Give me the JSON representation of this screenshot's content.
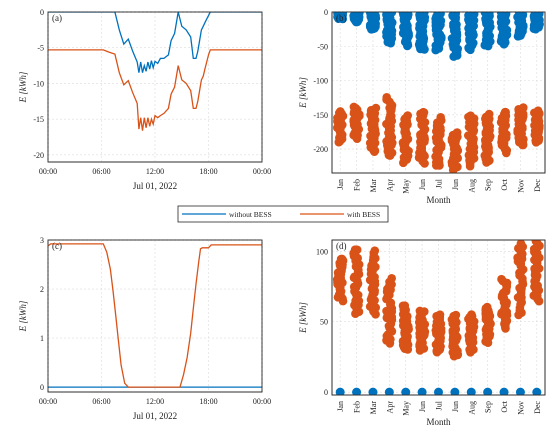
{
  "colors": {
    "without_bess": "#0072BD",
    "with_bess": "#D95319"
  },
  "legend": {
    "without": "without BESS",
    "with": "with BESS"
  },
  "chart_data": [
    {
      "panel": "(a)",
      "type": "line",
      "xlabel": "Jul 01, 2022",
      "ylabel": "E  [kWh]",
      "xticks": [
        "00:00",
        "06:00",
        "12:00",
        "18:00",
        "00:00"
      ],
      "xlim": [
        0,
        24
      ],
      "yticks": [
        "0",
        "-5",
        "-10",
        "-15",
        "-20"
      ],
      "ylim": [
        -21,
        0
      ],
      "series": [
        {
          "name": "without BESS",
          "color_key": "without_bess",
          "x": [
            0,
            7.5,
            8.0,
            8.5,
            9.0,
            9.5,
            10.0,
            10.2,
            10.4,
            10.6,
            10.8,
            11.0,
            11.2,
            11.4,
            11.6,
            11.8,
            12.0,
            12.3,
            12.6,
            13.0,
            13.5,
            13.8,
            14.2,
            14.6,
            15.0,
            15.5,
            16.0,
            16.3,
            16.6,
            16.8,
            17.0,
            17.2,
            17.4,
            17.6,
            17.8,
            18.0,
            18.2,
            24
          ],
          "y": [
            0,
            0,
            -2.5,
            -4.5,
            -3.8,
            -5.5,
            -7.0,
            -8.5,
            -7.0,
            -8.5,
            -7.5,
            -8.3,
            -7.0,
            -8.0,
            -6.8,
            -7.8,
            -6.9,
            -7.2,
            -6.5,
            -6.5,
            -6.0,
            -4.0,
            -3.0,
            0,
            -2.0,
            -2.5,
            -3.5,
            -6.5,
            -6.5,
            -5.5,
            -4.0,
            -2.5,
            -2.0,
            -1.5,
            -1.0,
            -0.5,
            0,
            0
          ]
        },
        {
          "name": "with BESS",
          "color_key": "with_bess",
          "x": [
            0,
            6.2,
            6.8,
            7.5,
            8.0,
            8.5,
            9.0,
            9.5,
            10.0,
            10.2,
            10.4,
            10.6,
            10.8,
            11.0,
            11.2,
            11.4,
            11.6,
            11.8,
            12.0,
            12.3,
            12.6,
            13.0,
            13.5,
            13.8,
            14.2,
            14.6,
            15.0,
            15.5,
            16.0,
            16.3,
            16.6,
            16.8,
            17.0,
            17.2,
            17.4,
            17.6,
            17.8,
            18.0,
            18.2,
            24
          ],
          "y": [
            -5.3,
            -5.3,
            -5.6,
            -5.9,
            -8.5,
            -10.2,
            -9.6,
            -11.3,
            -12.8,
            -16.4,
            -14.8,
            -16.6,
            -14.8,
            -16.2,
            -14.8,
            -16.0,
            -15.0,
            -15.7,
            -14.5,
            -14.8,
            -14.5,
            -14.2,
            -13.5,
            -11.5,
            -10.5,
            -7.5,
            -9.5,
            -10.0,
            -11.0,
            -13.5,
            -13.5,
            -12.5,
            -11.0,
            -9.5,
            -9.0,
            -8.0,
            -7.0,
            -6.0,
            -5.3,
            -5.3
          ]
        }
      ]
    },
    {
      "panel": "(b)",
      "type": "scatter",
      "xlabel": "Month",
      "ylabel": "E  [kWh]",
      "xticks": [
        "Jan",
        "Feb",
        "Mar",
        "Apr",
        "May",
        "Jun",
        "Jul",
        "Jun",
        "Aug",
        "Sep",
        "Oct",
        "Nov",
        "Dec"
      ],
      "xlim": [
        0.5,
        13.5
      ],
      "yticks": [
        "0",
        "-50",
        "-100",
        "-150",
        "-200"
      ],
      "ylim": [
        -235,
        0
      ],
      "series": [
        {
          "name": "without BESS",
          "color_key": "without_bess",
          "ranges": [
            [
              -10,
              0
            ],
            [
              -15,
              0
            ],
            [
              -25,
              0
            ],
            [
              -45,
              0
            ],
            [
              -50,
              0
            ],
            [
              -55,
              0
            ],
            [
              -55,
              0
            ],
            [
              -65,
              0
            ],
            [
              -55,
              0
            ],
            [
              -50,
              0
            ],
            [
              -48,
              0
            ],
            [
              -35,
              0
            ],
            [
              -25,
              0
            ]
          ]
        },
        {
          "name": "with BESS",
          "color_key": "with_bess",
          "ranges": [
            [
              -190,
              -145
            ],
            [
              -185,
              -138
            ],
            [
              -205,
              -140
            ],
            [
              -210,
              -125
            ],
            [
              -220,
              -150
            ],
            [
              -220,
              -145
            ],
            [
              -225,
              -155
            ],
            [
              -230,
              -175
            ],
            [
              -225,
              -150
            ],
            [
              -220,
              -150
            ],
            [
              -205,
              -145
            ],
            [
              -195,
              -140
            ],
            [
              -190,
              -145
            ]
          ]
        }
      ]
    },
    {
      "panel": "(c)",
      "type": "line",
      "xlabel": "Jul 01, 2022",
      "ylabel": "E  [kWh]",
      "xticks": [
        "00:00",
        "06:00",
        "12:00",
        "18:00",
        "00:00"
      ],
      "xlim": [
        0,
        24
      ],
      "yticks": [
        "0",
        "1",
        "2",
        "3"
      ],
      "ylim": [
        -0.1,
        3.0
      ],
      "series": [
        {
          "name": "without BESS",
          "color_key": "without_bess",
          "x": [
            0,
            24
          ],
          "y": [
            0,
            0
          ]
        },
        {
          "name": "with BESS",
          "color_key": "with_bess",
          "x": [
            0,
            0.3,
            6.2,
            6.6,
            7.0,
            7.3,
            7.6,
            7.9,
            8.2,
            8.6,
            9.0,
            14.8,
            15.2,
            15.6,
            16.0,
            16.3,
            16.6,
            16.9,
            17.1,
            17.3,
            18.0,
            18.3,
            24
          ],
          "y": [
            2.88,
            2.92,
            2.92,
            2.75,
            2.4,
            1.95,
            1.45,
            0.95,
            0.45,
            0.08,
            0,
            0,
            0.25,
            0.6,
            1.1,
            1.6,
            2.1,
            2.55,
            2.82,
            2.84,
            2.84,
            2.9,
            2.9
          ]
        }
      ]
    },
    {
      "panel": "(d)",
      "type": "scatter",
      "xlabel": "Month",
      "ylabel": "E  [kWh]",
      "xticks": [
        "Jan",
        "Feb",
        "Mar",
        "Apr",
        "May",
        "Jun",
        "Jul",
        "Jun",
        "Aug",
        "Sep",
        "Oct",
        "Nov",
        "Dec"
      ],
      "xlim": [
        0.5,
        13.5
      ],
      "yticks": [
        "0",
        "50",
        "100"
      ],
      "ylim": [
        -2,
        108
      ],
      "series": [
        {
          "name": "without BESS",
          "color_key": "without_bess",
          "ranges": [
            [
              0,
              0
            ],
            [
              0,
              0
            ],
            [
              0,
              0
            ],
            [
              0,
              0
            ],
            [
              0,
              0
            ],
            [
              0,
              0
            ],
            [
              0,
              0
            ],
            [
              0,
              0
            ],
            [
              0,
              0
            ],
            [
              0,
              0
            ],
            [
              0,
              0
            ],
            [
              0,
              0
            ],
            [
              0,
              0
            ]
          ]
        },
        {
          "name": "with BESS",
          "color_key": "with_bess",
          "ranges": [
            [
              65,
              95
            ],
            [
              55,
              102
            ],
            [
              55,
              100
            ],
            [
              35,
              80
            ],
            [
              30,
              62
            ],
            [
              30,
              58
            ],
            [
              28,
              55
            ],
            [
              25,
              55
            ],
            [
              28,
              55
            ],
            [
              35,
              60
            ],
            [
              45,
              80
            ],
            [
              55,
              105
            ],
            [
              65,
              108
            ]
          ]
        }
      ]
    }
  ]
}
